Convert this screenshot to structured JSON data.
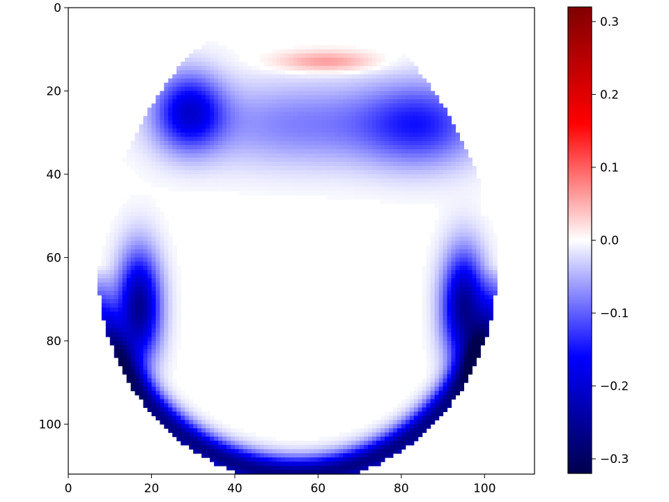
{
  "chart_data": {
    "type": "heatmap",
    "title": "",
    "xlabel": "",
    "ylabel": "",
    "xlim": [
      0,
      112
    ],
    "ylim": [
      112,
      0
    ],
    "x_ticks": [
      0,
      20,
      40,
      60,
      80,
      100
    ],
    "y_ticks": [
      0,
      20,
      40,
      60,
      80,
      100
    ],
    "x_tick_labels": [
      "0",
      "20",
      "40",
      "60",
      "80",
      "100"
    ],
    "y_tick_labels": [
      "0",
      "20",
      "40",
      "60",
      "80",
      "100"
    ],
    "colormap": "seismic",
    "color_range": [
      -0.32,
      0.32
    ],
    "colorbar": {
      "ticks": [
        0.3,
        0.2,
        0.1,
        0.0,
        -0.1,
        -0.2,
        -0.3
      ],
      "tick_labels": [
        "0.3",
        "0.2",
        "0.1",
        "0.0",
        "−0.1",
        "−0.2",
        "−0.3"
      ]
    },
    "grid": false,
    "legend": "none",
    "field_description_values": {
      "head_outline_center_x": 57,
      "head_outline_center_y": 58,
      "top_positive_peak": {
        "x": 62,
        "y": 13,
        "value": 0.07
      },
      "upper_negative_blob_left": {
        "x": 29,
        "y": 25,
        "value": -0.18
      },
      "upper_negative_blob_right": {
        "x": 85,
        "y": 28,
        "value": -0.12
      },
      "side_negative_left": {
        "x": 17,
        "y": 72,
        "value": -0.26
      },
      "side_negative_right": {
        "x": 95,
        "y": 72,
        "value": -0.26
      },
      "bottom_negative": {
        "x": 55,
        "y": 108,
        "value": -0.27
      }
    }
  },
  "colors": {
    "axis": "#000000",
    "background": "#ffffff"
  }
}
